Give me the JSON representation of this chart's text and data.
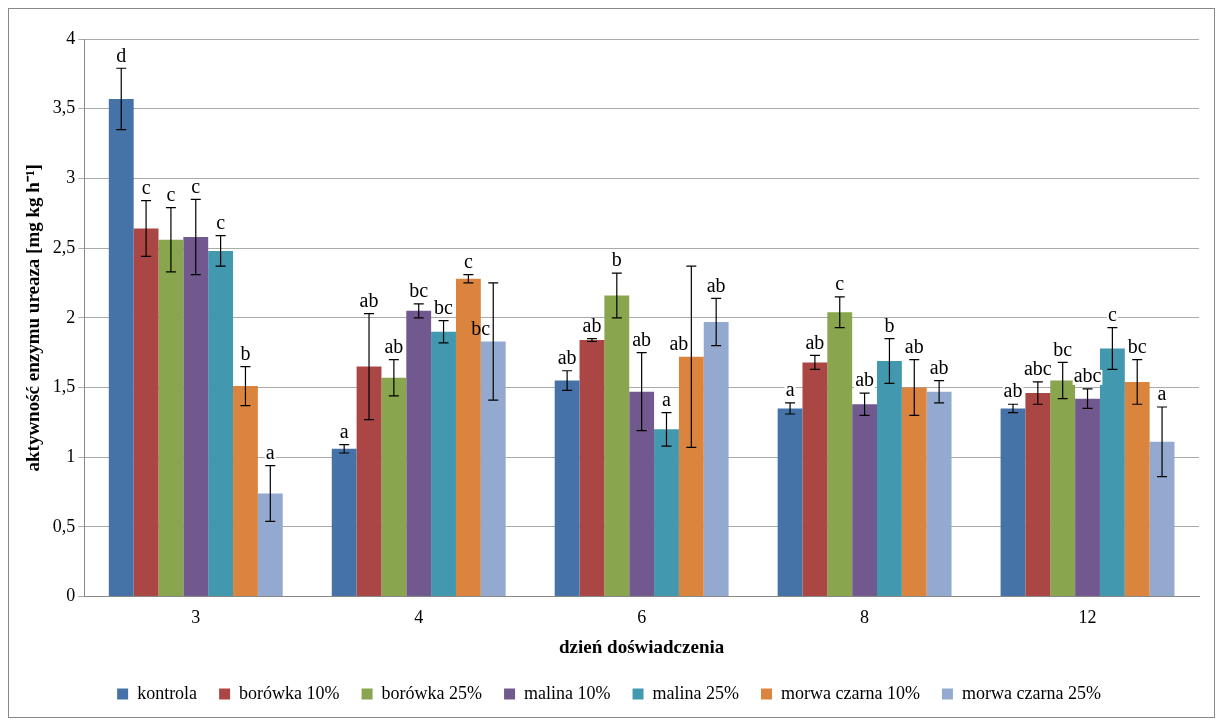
{
  "chart_data": {
    "type": "bar",
    "xlabel": "dzień doświadczenia",
    "ylabel": "aktywność enzymu ureaza [mg kg h⁻¹]",
    "categories": [
      "3",
      "4",
      "6",
      "8",
      "12"
    ],
    "ylim": [
      0,
      4
    ],
    "yticks": [
      0,
      {
        "value": 0.5,
        "label": "0,5"
      },
      1,
      {
        "value": 1.5,
        "label": "1,5"
      },
      2,
      {
        "value": 2.5,
        "label": "2,5"
      },
      3,
      {
        "value": 3.5,
        "label": "3,5"
      },
      4
    ],
    "grid": "y",
    "legend": "bottom",
    "series": [
      {
        "name": "kontrola",
        "color": "#4572a7",
        "values": [
          3.57,
          1.06,
          1.55,
          1.35,
          1.35
        ],
        "errors": [
          0.22,
          0.03,
          0.07,
          0.04,
          0.03
        ],
        "value_labels": [
          "d",
          "a",
          "ab",
          "a",
          "ab"
        ]
      },
      {
        "name": "borówka 10%",
        "color": "#aa4643",
        "values": [
          2.64,
          1.65,
          1.84,
          1.68,
          1.46
        ],
        "errors": [
          0.2,
          0.38,
          0.01,
          0.05,
          0.08
        ],
        "value_labels": [
          "c",
          "ab",
          "ab",
          "ab",
          "abc"
        ]
      },
      {
        "name": "borówka 25%",
        "color": "#89a54e",
        "values": [
          2.56,
          1.57,
          2.16,
          2.04,
          1.55
        ],
        "errors": [
          0.23,
          0.13,
          0.16,
          0.11,
          0.13
        ],
        "value_labels": [
          "c",
          "ab",
          "b",
          "c",
          "bc"
        ]
      },
      {
        "name": "malina 10%",
        "color": "#71588f",
        "values": [
          2.58,
          2.05,
          1.47,
          1.38,
          1.42
        ],
        "errors": [
          0.27,
          0.05,
          0.28,
          0.08,
          0.07
        ],
        "value_labels": [
          "c",
          "bc",
          "ab",
          "ab",
          "abc"
        ]
      },
      {
        "name": "malina 25%",
        "color": "#4198af",
        "values": [
          2.48,
          1.9,
          1.2,
          1.69,
          1.78
        ],
        "errors": [
          0.11,
          0.08,
          0.12,
          0.16,
          0.15
        ],
        "value_labels": [
          "c",
          "bc",
          "a",
          "b",
          "c"
        ]
      },
      {
        "name": "morwa czarna 10%",
        "color": "#db843d",
        "values": [
          1.51,
          2.28,
          1.72,
          1.5,
          1.54
        ],
        "errors": [
          0.14,
          0.03,
          0.65,
          0.2,
          0.16
        ],
        "value_labels": [
          "b",
          "c",
          "ab",
          "ab",
          "bc"
        ]
      },
      {
        "name": "morwa czarna 25%",
        "color": "#93a9cf",
        "values": [
          0.74,
          1.83,
          1.97,
          1.47,
          1.11
        ],
        "errors": [
          0.2,
          0.42,
          0.17,
          0.08,
          0.25
        ],
        "value_labels": [
          "a",
          "bc",
          "ab",
          "ab",
          "a"
        ]
      }
    ]
  }
}
